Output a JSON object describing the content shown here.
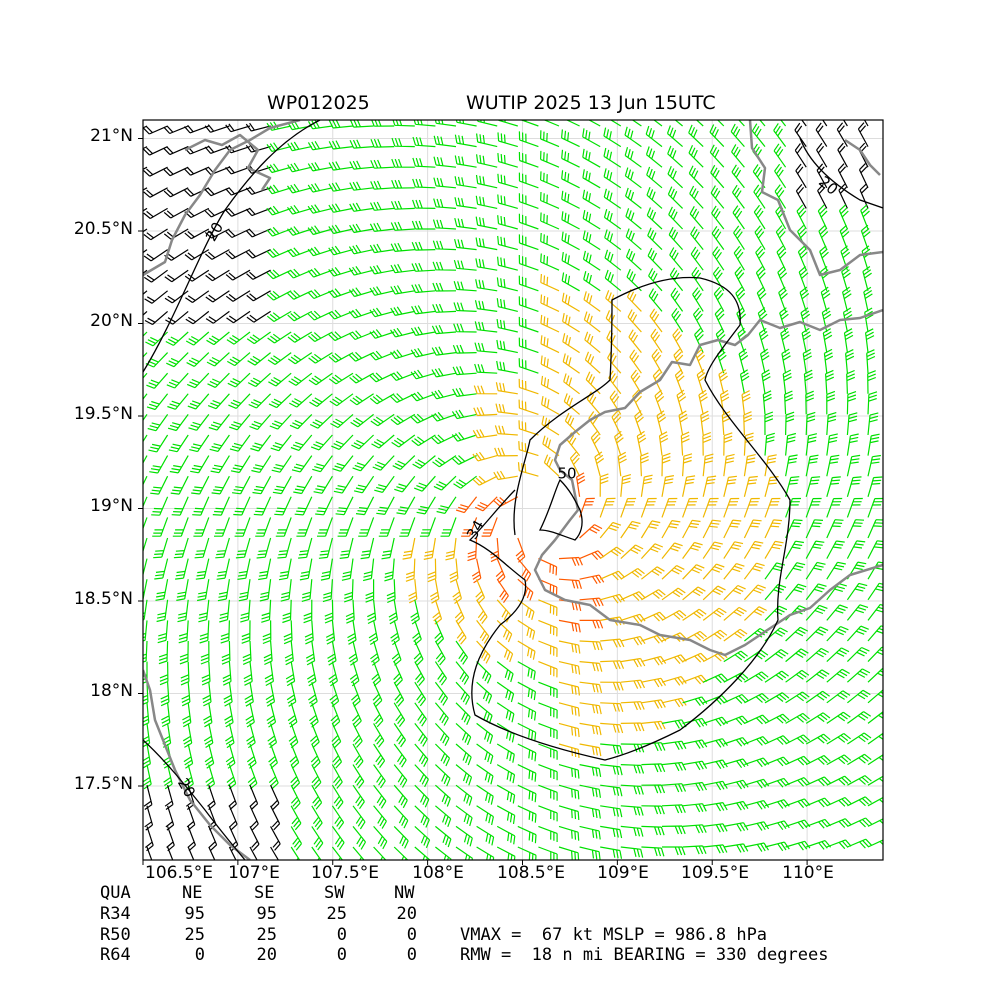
{
  "title_left": "WP012025",
  "title_right": "WUTIP 2025 13 Jun 15UTC",
  "lat_labels": [
    "21°N",
    "20.5°N",
    "20°N",
    "19.5°N",
    "19°N",
    "18.5°N",
    "18°N",
    "17.5°N"
  ],
  "lon_labels": [
    "106.5°E",
    "107°E",
    "107.5°E",
    "108°E",
    "108.5°E",
    "109°E",
    "109.5°E",
    "110°E"
  ],
  "contour_labels": [
    "20",
    "34",
    "50",
    "20",
    "20"
  ],
  "wind_radii": {
    "header": [
      "QUA",
      "NE",
      "SE",
      "SW",
      "NW"
    ],
    "rows": [
      {
        "label": "R34",
        "values": [
          "95",
          "95",
          "25",
          "20"
        ]
      },
      {
        "label": "R50",
        "values": [
          "25",
          "25",
          "0",
          "0"
        ]
      },
      {
        "label": "R64",
        "values": [
          "0",
          "20",
          "0",
          "0"
        ]
      }
    ]
  },
  "info_line1": "VMAX =  67 kt MSLP = 986.8 hPa",
  "info_line2": "RMW =  18 n mi BEARING = 330 degrees",
  "map": {
    "storm_center": {
      "lon": 108.6,
      "lat": 18.95
    },
    "lon_range": [
      106.5,
      110.4
    ],
    "lat_range": [
      17.1,
      21.1
    ],
    "colors": {
      "weak": "#000000",
      "gale": "#00e000",
      "storm": "#f0b800",
      "typhoon": "#ff5a00",
      "coast": "#888888",
      "contour": "#000000",
      "grid": "#dddddd"
    }
  }
}
